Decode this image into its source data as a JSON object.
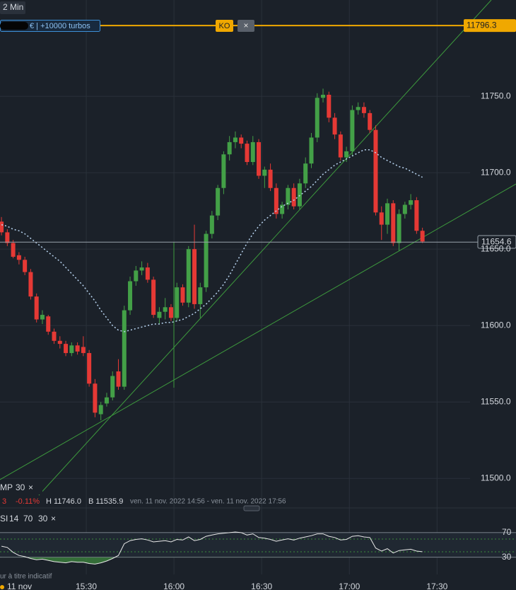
{
  "header": {
    "timeframe": "2 Min",
    "position": "€ | +10000 turbos",
    "ko_button": "KO",
    "close_button": "×"
  },
  "chart_data": {
    "type": "candlestick",
    "x": [
      900,
      902,
      904,
      906,
      908,
      910,
      912,
      914,
      916,
      918,
      920,
      922,
      924,
      926,
      928,
      930,
      932,
      934,
      936,
      938,
      940,
      942,
      944,
      946,
      948,
      950,
      952,
      954,
      956,
      958,
      960,
      962,
      964,
      966,
      968,
      970,
      972,
      974,
      976,
      978,
      980,
      982,
      984,
      986,
      988,
      990,
      992,
      994,
      996,
      998,
      1000,
      1002,
      1004,
      1006,
      1008,
      1010,
      1012,
      1014,
      1016,
      1018,
      1020,
      1022,
      1024,
      1026,
      1028,
      1030,
      1032,
      1034,
      1036,
      1038,
      1040,
      1042,
      1044
    ],
    "open": [
      11668,
      11661,
      11654,
      11646,
      11643,
      11635,
      11619,
      11604,
      11606,
      11596,
      11590,
      11588,
      11582,
      11587,
      11586,
      11582,
      11562,
      11542,
      11549,
      11553,
      11570,
      11560,
      11610,
      11629,
      11636,
      11638,
      11630,
      11605,
      11609,
      11612,
      11605,
      11625,
      11615,
      11650,
      11614,
      11625,
      11660,
      11672,
      11690,
      11712,
      11720,
      11723,
      11719,
      11707,
      11720,
      11698,
      11702,
      11690,
      11673,
      11679,
      11690,
      11678,
      11693,
      11706,
      11723,
      11749,
      11751,
      11736,
      11725,
      11710,
      11714,
      11741,
      11743,
      11739,
      11728,
      11674,
      11666,
      11680,
      11654,
      11673,
      11679,
      11682,
      11662
    ],
    "high": [
      11671,
      11663,
      11656,
      11648,
      11645,
      11637,
      11621,
      11610,
      11607,
      11598,
      11593,
      11590,
      11589,
      11589,
      11593,
      11584,
      11565,
      11550,
      11556,
      11570,
      11578,
      11613,
      11632,
      11639,
      11642,
      11641,
      11632,
      11612,
      11618,
      11614,
      11628,
      11627,
      11652,
      11666,
      11628,
      11662,
      11675,
      11692,
      11714,
      11724,
      11727,
      11725,
      11721,
      11724,
      11722,
      11704,
      11706,
      11693,
      11681,
      11692,
      11693,
      11696,
      11710,
      11726,
      11752,
      11755,
      11753,
      11739,
      11727,
      11717,
      11744,
      11746,
      11746,
      11741,
      11731,
      11678,
      11683,
      11682,
      11676,
      11681,
      11686,
      11684,
      11664
    ],
    "low": [
      11659,
      11652,
      11644,
      11640,
      11633,
      11617,
      11602,
      11601,
      11594,
      11588,
      11585,
      11580,
      11580,
      11581,
      11580,
      11560,
      11540,
      11538,
      11547,
      11551,
      11558,
      11558,
      11607,
      11626,
      11633,
      11628,
      11605,
      11601,
      11604,
      11603,
      11603,
      11613,
      11612,
      11611,
      11605,
      11622,
      11657,
      11669,
      11686,
      11708,
      11716,
      11716,
      11705,
      11705,
      11696,
      11690,
      11688,
      11670,
      11670,
      11676,
      11676,
      11676,
      11690,
      11703,
      11720,
      11746,
      11733,
      11722,
      11708,
      11707,
      11711,
      11738,
      11736,
      11726,
      11672,
      11656,
      11660,
      11652,
      11649,
      11670,
      11676,
      11660,
      11654
    ],
    "close": [
      11661,
      11654,
      11645,
      11643,
      11635,
      11619,
      11604,
      11607,
      11596,
      11590,
      11588,
      11582,
      11587,
      11583,
      11582,
      11562,
      11543,
      11548,
      11553,
      11567,
      11560,
      11610,
      11629,
      11636,
      11638,
      11630,
      11607,
      11609,
      11612,
      11605,
      11625,
      11615,
      11650,
      11614,
      11625,
      11660,
      11672,
      11690,
      11712,
      11720,
      11723,
      11719,
      11707,
      11720,
      11698,
      11702,
      11690,
      11673,
      11679,
      11690,
      11678,
      11693,
      11706,
      11723,
      11749,
      11751,
      11736,
      11725,
      11710,
      11714,
      11741,
      11743,
      11739,
      11728,
      11674,
      11666,
      11680,
      11654,
      11673,
      11679,
      11682,
      11662,
      11655
    ],
    "up_color": "#43a047",
    "down_color": "#e53935",
    "xlim": [
      900.5,
      1077
    ],
    "xticks": [
      {
        "value": 930,
        "label": "15:30"
      },
      {
        "value": 960,
        "label": "16:00"
      },
      {
        "value": 990,
        "label": "16:30"
      },
      {
        "value": 1020,
        "label": "17:00"
      },
      {
        "value": 1050,
        "label": "17:30"
      }
    ],
    "date_label": "11 nov",
    "ylim": [
      11489,
      11813
    ],
    "yticks": [
      {
        "value": 11500,
        "label": "11500.0"
      },
      {
        "value": 11550,
        "label": "11550.0"
      },
      {
        "value": 11600,
        "label": "11600.0"
      },
      {
        "value": 11650,
        "label": "11650.0"
      },
      {
        "value": 11700,
        "label": "11700.0"
      },
      {
        "value": 11750,
        "label": "11750.0"
      }
    ],
    "grid": true,
    "ma": {
      "name": "MP",
      "period": 30,
      "color": "#b8d4f0",
      "values": [
        11666,
        11665,
        11663,
        11662,
        11660,
        11657,
        11654,
        11651,
        11648,
        11645,
        11642,
        11638,
        11634,
        11630,
        11626,
        11621,
        11616,
        11610,
        11605,
        11600,
        11597,
        11596,
        11597,
        11598,
        11599,
        11600,
        11601,
        11601,
        11602,
        11602,
        11603,
        11604,
        11606,
        11608,
        11611,
        11614,
        11618,
        11622,
        11627,
        11633,
        11640,
        11647,
        11654,
        11660,
        11665,
        11669,
        11672,
        11675,
        11678,
        11680,
        11682,
        11685,
        11688,
        11691,
        11695,
        11699,
        11702,
        11705,
        11707,
        11709,
        11711,
        11713,
        11715,
        11715,
        11713,
        11710,
        11708,
        11706,
        11704,
        11703,
        11701,
        11699,
        11697
      ]
    },
    "ko_level": {
      "value": 11796.3,
      "color": "#f0a800"
    },
    "last_price": {
      "value": 11654.6
    },
    "legend_close": "×",
    "info": {
      "last": "3",
      "change": "-0.11%",
      "high": "H 11746.0",
      "low": "B 11535.9",
      "range": "ven. 11 nov. 2022 14:56 - ven. 11 nov. 2022 17:56"
    },
    "rsi": {
      "name": "SI",
      "period": 14,
      "color": "#e8e8e8",
      "fill_color": "#3f8f3f",
      "ylim": [
        16,
        79
      ],
      "yticks": [
        30,
        70
      ],
      "values": [
        48,
        46,
        38,
        33,
        31,
        28,
        26,
        27,
        25,
        23,
        22,
        21,
        23,
        22,
        22,
        20,
        19,
        21,
        24,
        28,
        33,
        52,
        57,
        59,
        60,
        58,
        55,
        56,
        57,
        55,
        59,
        58,
        63,
        57,
        59,
        64,
        66,
        68,
        69,
        70,
        71,
        70,
        66,
        68,
        62,
        61,
        59,
        56,
        58,
        60,
        58,
        61,
        63,
        65,
        68,
        68,
        64,
        62,
        58,
        59,
        64,
        65,
        63,
        62,
        45,
        40,
        44,
        37,
        41,
        42,
        43,
        40,
        39
      ]
    },
    "disclaimer": "ur à titre indicatif"
  }
}
